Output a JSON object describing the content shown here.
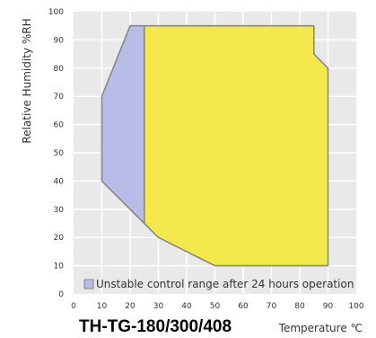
{
  "chart_data": {
    "type": "area",
    "title": "TH-TG-180/300/408",
    "xlabel": "Temperature ℃",
    "ylabel": "Relative Humidity %RH",
    "xlim": [
      0,
      100
    ],
    "ylim": [
      0,
      100
    ],
    "x_ticks": [
      "0",
      "10",
      "20",
      "30",
      "40",
      "50",
      "60",
      "70",
      "80",
      "90",
      "100"
    ],
    "y_ticks": [
      "0",
      "10",
      "20",
      "30",
      "40",
      "50",
      "60",
      "70",
      "80",
      "90",
      "100"
    ],
    "grid": true,
    "series": [
      {
        "name": "Unstable control range after 24 hours operation",
        "color": "#b7bde6",
        "points": [
          [
            10,
            40
          ],
          [
            10,
            70
          ],
          [
            20,
            95
          ],
          [
            25,
            95
          ],
          [
            25,
            25
          ],
          [
            10,
            40
          ]
        ]
      },
      {
        "color": "#f4e94c",
        "points": [
          [
            25,
            95
          ],
          [
            85,
            95
          ],
          [
            85,
            85
          ],
          [
            90,
            80
          ],
          [
            90,
            10
          ],
          [
            50,
            10
          ],
          [
            30,
            20
          ],
          [
            25,
            25
          ],
          [
            25,
            95
          ]
        ]
      }
    ],
    "legend": {
      "label": "Unstable control range after 24 hours operation",
      "placement": "bottom"
    },
    "colors": {
      "grid": "#ffffff",
      "plot_bg": "#e9e9e9",
      "outline": "#888888"
    }
  }
}
